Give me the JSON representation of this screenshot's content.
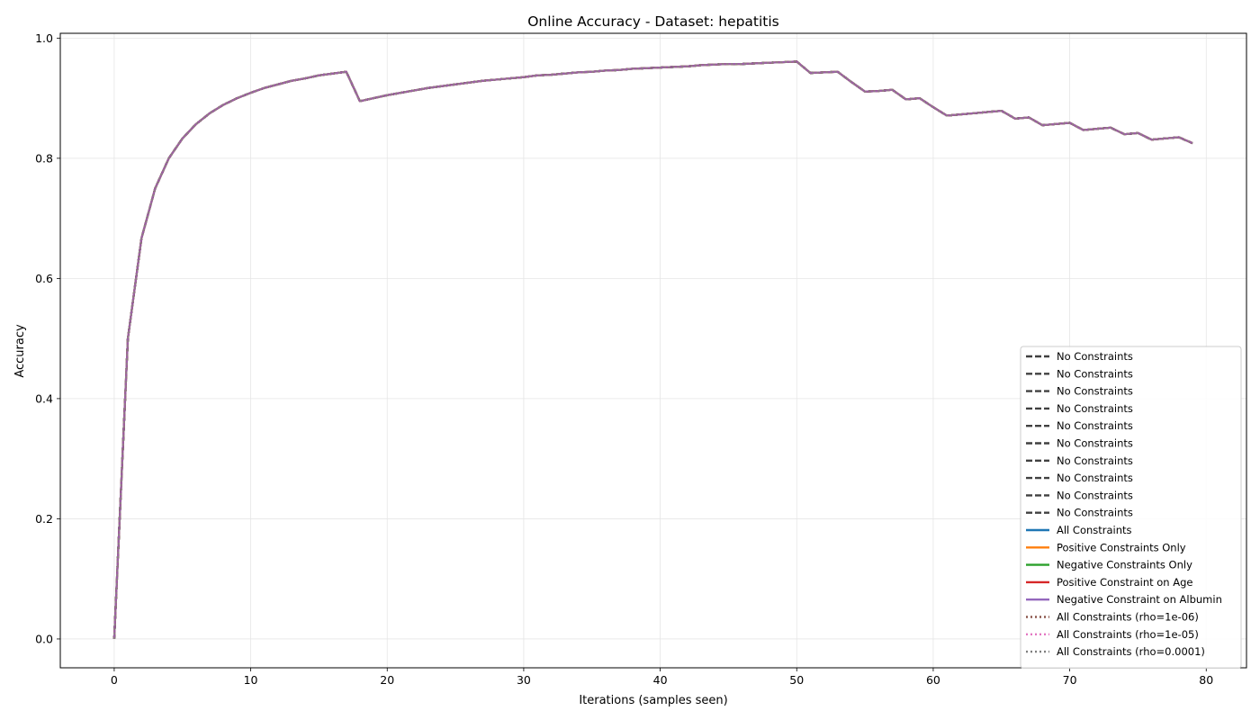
{
  "chart_data": {
    "type": "line",
    "title": "Online Accuracy - Dataset: hepatitis",
    "xlabel": "Iterations (samples seen)",
    "ylabel": "Accuracy",
    "xlim": [
      -3.95,
      82.95
    ],
    "ylim": [
      -0.048,
      1.008
    ],
    "xticks": [
      0,
      10,
      20,
      30,
      40,
      50,
      60,
      70,
      80
    ],
    "yticks": [
      0.0,
      0.2,
      0.4,
      0.6,
      0.8,
      1.0
    ],
    "xtick_labels": [
      "0",
      "10",
      "20",
      "30",
      "40",
      "50",
      "60",
      "70",
      "80"
    ],
    "ytick_labels": [
      "0.0",
      "0.2",
      "0.4",
      "0.6",
      "0.8",
      "1.0"
    ],
    "grid": true,
    "legend_position": "lower right",
    "x": [
      0,
      1,
      2,
      3,
      4,
      5,
      6,
      7,
      8,
      9,
      10,
      11,
      12,
      13,
      14,
      15,
      16,
      17,
      18,
      19,
      20,
      21,
      22,
      23,
      24,
      25,
      26,
      27,
      28,
      29,
      30,
      31,
      32,
      33,
      34,
      35,
      36,
      37,
      38,
      39,
      40,
      41,
      42,
      43,
      44,
      45,
      46,
      47,
      48,
      49,
      50,
      51,
      52,
      53,
      54,
      55,
      56,
      57,
      58,
      59,
      60,
      61,
      62,
      63,
      64,
      65,
      66,
      67,
      68,
      69,
      70,
      71,
      72,
      73,
      74,
      75,
      76,
      77,
      78,
      79
    ],
    "y": [
      0.0,
      0.5,
      0.667,
      0.75,
      0.8,
      0.833,
      0.857,
      0.875,
      0.889,
      0.9,
      0.909,
      0.917,
      0.923,
      0.929,
      0.933,
      0.938,
      0.941,
      0.944,
      0.895,
      0.9,
      0.905,
      0.909,
      0.913,
      0.917,
      0.92,
      0.923,
      0.926,
      0.929,
      0.931,
      0.933,
      0.935,
      0.938,
      0.939,
      0.941,
      0.943,
      0.944,
      0.946,
      0.947,
      0.949,
      0.95,
      0.951,
      0.952,
      0.953,
      0.955,
      0.956,
      0.957,
      0.957,
      0.958,
      0.959,
      0.96,
      0.961,
      0.942,
      0.943,
      0.944,
      0.927,
      0.911,
      0.912,
      0.914,
      0.898,
      0.9,
      0.885,
      0.871,
      0.873,
      0.875,
      0.877,
      0.879,
      0.866,
      0.868,
      0.855,
      0.857,
      0.859,
      0.847,
      0.849,
      0.851,
      0.84,
      0.842,
      0.831,
      0.833,
      0.835,
      0.825
    ],
    "series": [
      {
        "name": "No Constraints",
        "color": "#404040",
        "dash": "dashed"
      },
      {
        "name": "No Constraints",
        "color": "#404040",
        "dash": "dashed"
      },
      {
        "name": "No Constraints",
        "color": "#404040",
        "dash": "dashed"
      },
      {
        "name": "No Constraints",
        "color": "#404040",
        "dash": "dashed"
      },
      {
        "name": "No Constraints",
        "color": "#404040",
        "dash": "dashed"
      },
      {
        "name": "No Constraints",
        "color": "#404040",
        "dash": "dashed"
      },
      {
        "name": "No Constraints",
        "color": "#404040",
        "dash": "dashed"
      },
      {
        "name": "No Constraints",
        "color": "#404040",
        "dash": "dashed"
      },
      {
        "name": "No Constraints",
        "color": "#404040",
        "dash": "dashed"
      },
      {
        "name": "No Constraints",
        "color": "#404040",
        "dash": "dashed"
      },
      {
        "name": "All Constraints",
        "color": "#1f77b4",
        "dash": "solid"
      },
      {
        "name": "Positive Constraints Only",
        "color": "#ff7f0e",
        "dash": "solid"
      },
      {
        "name": "Negative Constraints Only",
        "color": "#2ca02c",
        "dash": "solid"
      },
      {
        "name": "Positive Constraint on Age",
        "color": "#d62728",
        "dash": "solid"
      },
      {
        "name": "Negative Constraint on Albumin",
        "color": "#9467bd",
        "dash": "solid"
      },
      {
        "name": "All Constraints (rho=1e-06)",
        "color": "#8c564b",
        "dash": "dotted"
      },
      {
        "name": "All Constraints (rho=1e-05)",
        "color": "#e377c2",
        "dash": "dotted"
      },
      {
        "name": "All Constraints (rho=0.0001)",
        "color": "#7f7f7f",
        "dash": "dotted"
      }
    ]
  }
}
